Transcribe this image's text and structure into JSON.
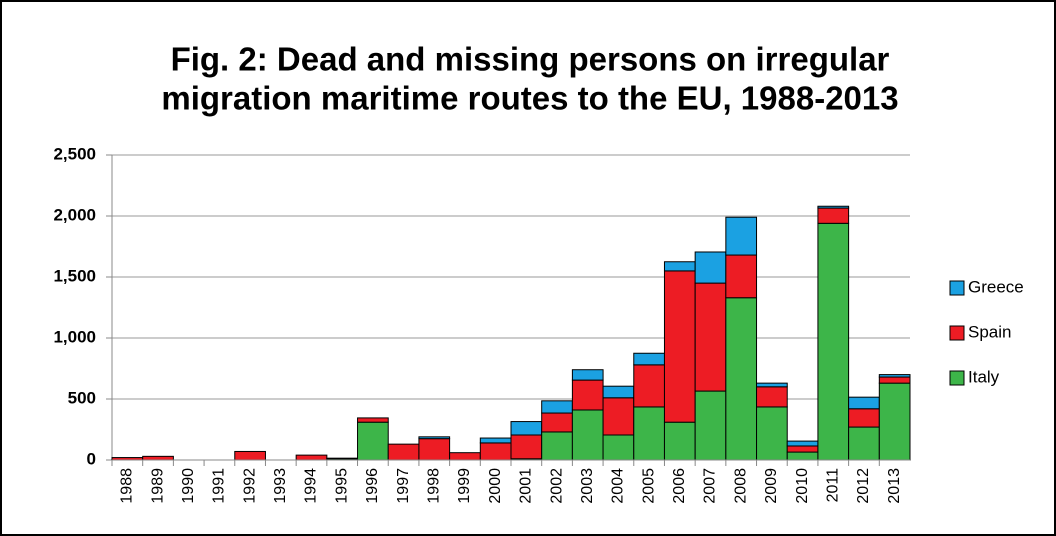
{
  "chart_data": {
    "type": "stacked_bar",
    "title": [
      "Fig. 2: Dead and missing persons on irregular",
      "migration maritime routes to the EU, 1988-2013"
    ],
    "categories": [
      "1988",
      "1989",
      "1990",
      "1991",
      "1992",
      "1993",
      "1994",
      "1995",
      "1996",
      "1997",
      "1998",
      "1999",
      "2000",
      "2001",
      "2002",
      "2003",
      "2004",
      "2005",
      "2006",
      "2007",
      "2008",
      "2009",
      "2010",
      "2011",
      "2012",
      "2013"
    ],
    "series": [
      {
        "name": "Italy",
        "color": "#3db549",
        "values": [
          0,
          0,
          0,
          0,
          0,
          0,
          0,
          10,
          310,
          0,
          0,
          0,
          0,
          10,
          230,
          410,
          205,
          435,
          310,
          565,
          1330,
          435,
          65,
          1940,
          270,
          630
        ]
      },
      {
        "name": "Spain",
        "color": "#ed1c24",
        "values": [
          20,
          30,
          0,
          0,
          70,
          0,
          40,
          5,
          35,
          130,
          175,
          60,
          140,
          195,
          155,
          245,
          305,
          345,
          1240,
          885,
          350,
          165,
          50,
          125,
          150,
          50
        ]
      },
      {
        "name": "Greece",
        "color": "#1ba1e2",
        "values": [
          0,
          0,
          0,
          0,
          0,
          0,
          0,
          0,
          0,
          0,
          15,
          0,
          40,
          110,
          100,
          85,
          95,
          95,
          75,
          255,
          310,
          30,
          40,
          15,
          95,
          20
        ]
      }
    ],
    "ylim": [
      0,
      2500
    ],
    "yticks": [
      0,
      500,
      {
        "value": 1000,
        "label": "1,000"
      },
      {
        "value": 1500,
        "label": "1,500"
      },
      {
        "value": 2000,
        "label": "2,000"
      },
      {
        "value": 2500,
        "label": "2,500"
      }
    ],
    "grid": true,
    "legend": "right"
  }
}
